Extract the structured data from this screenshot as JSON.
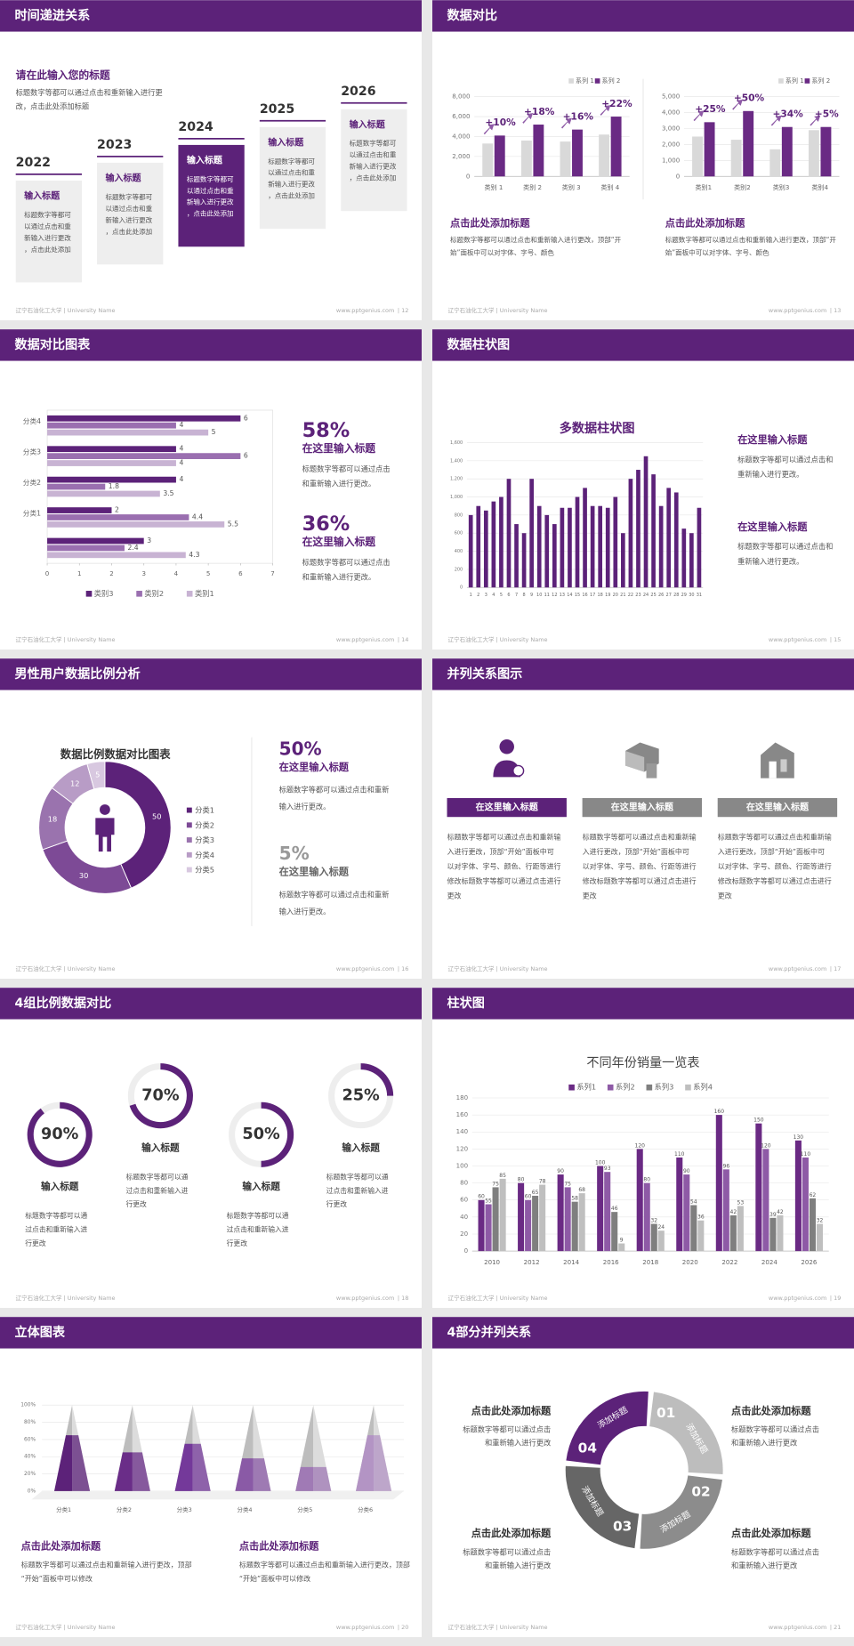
{
  "footer": {
    "school": "辽宁石油化工大学 | University Name",
    "url": "www.pptgenius.com"
  },
  "slides": [
    {
      "title": "时间递进关系",
      "page": "| 12",
      "heading": "请在此输入您的标题",
      "intro": "标题数字等都可以通过点击和重新输入进行更改，点击此处添加标题",
      "steps": [
        {
          "year": "2022",
          "title": "输入标题",
          "text": "标题数字等都可以通过点击和重新输入进行更改，点击此处添加"
        },
        {
          "year": "2023",
          "title": "输入标题",
          "text": "标题数字等都可以通过点击和重新输入进行更改，点击此处添加"
        },
        {
          "year": "2024",
          "title": "输入标题",
          "text": "标题数字等都可以通过点击和重新输入进行更改，点击此处添加"
        },
        {
          "year": "2025",
          "title": "输入标题",
          "text": "标题数字等都可以通过点击和重新输入进行更改，点击此处添加"
        },
        {
          "year": "2026",
          "title": "输入标题",
          "text": "标题数字等都可以通过点击和重新输入进行更改，点击此处添加"
        }
      ]
    },
    {
      "title": "数据对比",
      "page": "| 13",
      "blocks": [
        {
          "title": "点击此处添加标题",
          "text": "标题数字等都可以通过点击和重新输入进行更改，顶部“开始”面板中可以对字体、字号、颜色"
        },
        {
          "title": "点击此处添加标题",
          "text": "标题数字等都可以通过点击和重新输入进行更改，顶部“开始”面板中可以对字体、字号、颜色"
        }
      ]
    },
    {
      "title": "数据对比图表",
      "page": "| 14",
      "blocks": [
        {
          "stat": "58%",
          "title": "在这里输入标题",
          "text": "标题数字等都可以通过点击和重新输入进行更改。"
        },
        {
          "stat": "36%",
          "title": "在这里输入标题",
          "text": "标题数字等都可以通过点击和重新输入进行更改。"
        }
      ]
    },
    {
      "title": "数据柱状图",
      "page": "| 15",
      "blocks": [
        {
          "title": "在这里输入标题",
          "text": "标题数字等都可以通过点击和重新输入进行更改。"
        },
        {
          "title": "在这里输入标题",
          "text": "标题数字等都可以通过点击和重新输入进行更改。"
        }
      ]
    },
    {
      "title": "男性用户数据比例分析",
      "page": "| 16",
      "blocks": [
        {
          "stat": "50%",
          "title": "在这里输入标题",
          "text": "标题数字等都可以通过点击和重新输入进行更改。"
        },
        {
          "stat": "5%",
          "title": "在这里输入标题",
          "text": "标题数字等都可以通过点击和重新输入进行更改。"
        }
      ]
    },
    {
      "title": "并列关系图示",
      "page": "| 17",
      "blocks": [
        {
          "title": "在这里输入标题",
          "text": "标题数字等都可以通过点击和重新输入进行更改，顶部“开始”面板中可以对字体、字号、颜色、行距等进行修改标题数字等都可以通过点击进行更改"
        },
        {
          "title": "在这里输入标题",
          "text": "标题数字等都可以通过点击和重新输入进行更改，顶部“开始”面板中可以对字体、字号、颜色、行距等进行修改标题数字等都可以通过点击进行更改"
        },
        {
          "title": "在这里输入标题",
          "text": "标题数字等都可以通过点击和重新输入进行更改，顶部“开始”面板中可以对字体、字号、颜色、行距等进行修改标题数字等都可以通过点击进行更改"
        }
      ]
    },
    {
      "title": "4组比例数据对比",
      "page": "| 18",
      "blocks": [
        {
          "title": "输入标题",
          "text": "标题数字等都可以通过点击和重新输入进行更改"
        },
        {
          "title": "输入标题",
          "text": "标题数字等都可以通过点击和重新输入进行更改"
        },
        {
          "title": "输入标题",
          "text": "标题数字等都可以通过点击和重新输入进行更改"
        },
        {
          "title": "输入标题",
          "text": "标题数字等都可以通过点击和重新输入进行更改"
        }
      ]
    },
    {
      "title": "柱状图",
      "page": "| 19"
    },
    {
      "title": "立体图表",
      "page": "| 20",
      "blocks": [
        {
          "title": "点击此处添加标题",
          "text": "标题数字等都可以通过点击和重新输入进行更改，顶部“开始”面板中可以修改"
        },
        {
          "title": "点击此处添加标题",
          "text": "标题数字等都可以通过点击和重新输入进行更改，顶部“开始”面板中可以修改"
        }
      ]
    },
    {
      "title": "4部分并列关系",
      "page": "| 21",
      "segments": [
        {
          "number": "01",
          "label": "添加标题"
        },
        {
          "number": "02",
          "label": "添加标题"
        },
        {
          "number": "03",
          "label": "添加标题"
        },
        {
          "number": "04",
          "label": "添加标题"
        }
      ],
      "blocks": [
        {
          "title": "点击此处添加标题",
          "text": "标题数字等都可以通过点击和重新输入进行更改"
        },
        {
          "title": "点击此处添加标题",
          "text": "标题数字等都可以通过点击和重新输入进行更改"
        },
        {
          "title": "点击此处添加标题",
          "text": "标题数字等都可以通过点击和重新输入进行更改"
        },
        {
          "title": "点击此处添加标题",
          "text": "标题数字等都可以通过点击和重新输入进行更改"
        }
      ]
    }
  ],
  "chart_data": [
    {
      "type": "bar",
      "categories": [
        "类别 1",
        "类别 2",
        "类别 3",
        "类别 4"
      ],
      "series": [
        {
          "name": "系列 1",
          "color": "#d9d9d9",
          "values": [
            3300,
            3600,
            3500,
            4200
          ]
        },
        {
          "name": "系列 2",
          "color": "#6a2a84",
          "values": [
            4100,
            5200,
            4700,
            6000
          ]
        }
      ],
      "annotations": [
        "+10%",
        "+18%",
        "+16%",
        "+22%"
      ],
      "ylim": [
        0,
        8000
      ],
      "yticks": [
        0,
        {
          "value": 2000,
          "label": "2,000"
        },
        {
          "value": 4000,
          "label": "4,000"
        },
        {
          "value": 6000,
          "label": "6,000"
        },
        {
          "value": 8000,
          "label": "8,000"
        }
      ],
      "grid": true,
      "legend": "top-right"
    },
    {
      "type": "bar",
      "categories": [
        "类别1",
        "类别2",
        "类别3",
        "类别4"
      ],
      "series": [
        {
          "name": "系列 1",
          "color": "#d9d9d9",
          "values": [
            2500,
            2300,
            1700,
            2900
          ]
        },
        {
          "name": "系列 2",
          "color": "#6a2a84",
          "values": [
            3400,
            4100,
            3100,
            3100
          ]
        }
      ],
      "annotations": [
        "+25%",
        "+50%",
        "+34%",
        "+5%"
      ],
      "ylim": [
        0,
        5000
      ],
      "yticks": [
        0,
        {
          "value": 1000,
          "label": "1,000"
        },
        {
          "value": 2000,
          "label": "2,000"
        },
        {
          "value": 3000,
          "label": "3,000"
        },
        {
          "value": 4000,
          "label": "4,000"
        },
        {
          "value": 5000,
          "label": "5,000"
        }
      ],
      "grid": true,
      "legend": "top-right"
    },
    {
      "type": "barh",
      "categories": [
        null,
        "分类1",
        "分类2",
        "分类3",
        "分类4"
      ],
      "series": [
        {
          "name": "类别3",
          "color": "#5c2279",
          "values": [
            3,
            2,
            4,
            4,
            6
          ]
        },
        {
          "name": "类别2",
          "color": "#9a6fb0",
          "values": [
            2.4,
            4.4,
            1.8,
            6,
            4
          ]
        },
        {
          "name": "类别1",
          "color": "#c8b3d3",
          "values": [
            4.3,
            5.5,
            3.5,
            4,
            5
          ]
        }
      ],
      "xlim": [
        0,
        7
      ],
      "xticks": [
        0,
        1,
        2,
        3,
        4,
        5,
        6,
        7
      ],
      "legend": "bottom"
    },
    {
      "type": "bar",
      "title": "多数据柱状图",
      "categories": [
        "1",
        "2",
        "3",
        "4",
        "5",
        "6",
        "7",
        "8",
        "9",
        "10",
        "11",
        "12",
        "13",
        "14",
        "15",
        "16",
        "17",
        "18",
        "19",
        "20",
        "21",
        "22",
        "23",
        "24",
        "25",
        "26",
        "27",
        "28",
        "29",
        "30",
        "31"
      ],
      "values": [
        800,
        900,
        850,
        950,
        1000,
        1200,
        700,
        600,
        1200,
        900,
        800,
        700,
        880,
        880,
        1000,
        1100,
        900,
        900,
        880,
        1000,
        600,
        1200,
        1300,
        1450,
        1250,
        900,
        1100,
        1050,
        650,
        600,
        880
      ],
      "color": "#5c2279",
      "ylim": [
        0,
        1600
      ],
      "yticks": [
        0,
        200,
        400,
        600,
        800,
        {
          "value": 1000,
          "label": "1,000"
        },
        {
          "value": 1200,
          "label": "1,200"
        },
        {
          "value": 1400,
          "label": "1,400"
        },
        {
          "value": 1600,
          "label": "1,600"
        }
      ],
      "grid": true
    },
    {
      "type": "donut",
      "title": "数据比例数据对比图表",
      "categories": [
        "分类1",
        "分类2",
        "分类3",
        "分类4",
        "分类5"
      ],
      "values": [
        50,
        30,
        18,
        12,
        5
      ],
      "colors": [
        "#5c2279",
        "#7d4a96",
        "#9a73ae",
        "#b89cc6",
        "#d8c8e0"
      ],
      "legend": "right"
    },
    {
      "type": "ring",
      "values": [
        90,
        70,
        50,
        25
      ],
      "value_labels": [
        "90%",
        "70%",
        "50%",
        "25%"
      ],
      "color": "#5c2279"
    },
    {
      "type": "bar",
      "title": "不同年份销量一览表",
      "categories": [
        "2010",
        "2012",
        "2014",
        "2016",
        "2018",
        "2020",
        "2022",
        "2024",
        "2026"
      ],
      "series": [
        {
          "name": "系列1",
          "color": "#6a2a84",
          "values": [
            60,
            80,
            90,
            100,
            120,
            110,
            160,
            150,
            130
          ]
        },
        {
          "name": "系列2",
          "color": "#8e5aa6",
          "values": [
            55,
            60,
            75,
            93,
            80,
            90,
            96,
            120,
            110
          ]
        },
        {
          "name": "系列3",
          "color": "#7f7f7f",
          "values": [
            75,
            65,
            58,
            46,
            32,
            54,
            42,
            39,
            62
          ]
        },
        {
          "name": "系列4",
          "color": "#bfbfbf",
          "values": [
            85,
            78,
            68,
            9,
            24,
            36,
            53,
            42,
            32
          ]
        }
      ],
      "ylim": [
        0,
        180
      ],
      "yticks": [
        0,
        20,
        40,
        60,
        80,
        100,
        120,
        140,
        160,
        180
      ],
      "grid": true,
      "legend": "top",
      "data_labels": true
    },
    {
      "type": "pyramid",
      "categories": [
        "分类1",
        "分类2",
        "分类3",
        "分类4",
        "分类5",
        "分类6"
      ],
      "values": [
        65,
        45,
        55,
        38,
        28,
        65
      ],
      "colors": [
        "#5c2279",
        "#6a2d88",
        "#74399a",
        "#8a5aa6",
        "#a07ab5",
        "#b394c4"
      ],
      "ylim": [
        0,
        100
      ],
      "yticks": [
        {
          "value": 0,
          "label": "0%"
        },
        {
          "value": 20,
          "label": "20%"
        },
        {
          "value": 40,
          "label": "40%"
        },
        {
          "value": 60,
          "label": "60%"
        },
        {
          "value": 80,
          "label": "80%"
        },
        {
          "value": 100,
          "label": "100%"
        }
      ],
      "grid": true
    }
  ]
}
